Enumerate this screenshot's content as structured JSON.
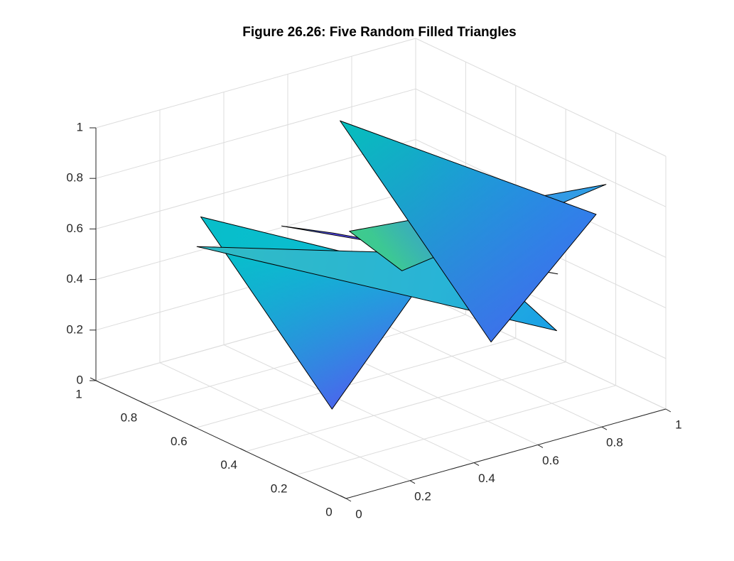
{
  "chart_data": {
    "type": "patch3d",
    "title": "Figure 26.26: Five Random Filled Triangles",
    "xlabel": "",
    "ylabel": "",
    "zlabel": "",
    "xlim": [
      0,
      1
    ],
    "ylim": [
      0,
      1
    ],
    "zlim": [
      0,
      1
    ],
    "x_ticks": [
      "0",
      "0.2",
      "0.4",
      "0.6",
      "0.8",
      "1"
    ],
    "y_ticks": [
      "0",
      "0.2",
      "0.4",
      "0.6",
      "0.8",
      "1"
    ],
    "z_ticks": [
      "0",
      "0.2",
      "0.4",
      "0.6",
      "0.8",
      "1"
    ],
    "grid": true,
    "box": false,
    "colormap": "parula",
    "view": {
      "azimuth": -37.5,
      "elevation": 30
    },
    "triangles": [
      {
        "vertices": [
          [
            0.74,
            0.1,
            0.58
          ],
          [
            0.44,
            0.82,
            0.54
          ],
          [
            0.07,
            0.14,
            0.96
          ]
        ],
        "colors": [
          "#3c6ef0",
          "#35c2a8",
          "#5a45f5"
        ]
      },
      {
        "vertices": [
          [
            0.3,
            0.16,
            0.72
          ],
          [
            0.86,
            0.06,
            0.91
          ],
          [
            0.73,
            0.92,
            0.37
          ]
        ],
        "colors": [
          "#3ecb8c",
          "#2dabe0",
          "#3a80f0"
        ]
      },
      {
        "vertices": [
          [
            0.05,
            0.12,
            0.28
          ],
          [
            0.14,
            0.76,
            0.71
          ],
          [
            0.68,
            0.54,
            0.4
          ]
        ],
        "colors": [
          "#5a52f5",
          "#05bfc5",
          "#0ebbd6"
        ]
      },
      {
        "vertices": [
          [
            0.79,
            0.01,
            0.84
          ],
          [
            0.61,
            0.2,
            0.31
          ],
          [
            0.74,
            0.97,
            0.78
          ]
        ],
        "colors": [
          "#06b6d9",
          "#4e5af5",
          "#05bfbc"
        ]
      },
      {
        "vertices": [
          [
            0.23,
            0.89,
            0.5
          ],
          [
            0.97,
            0.73,
            0.28
          ],
          [
            0.87,
            0.27,
            0.23
          ]
        ],
        "colors": [
          "#44c98a",
          "#2ab7d8",
          "#1aa0e6"
        ]
      }
    ]
  }
}
